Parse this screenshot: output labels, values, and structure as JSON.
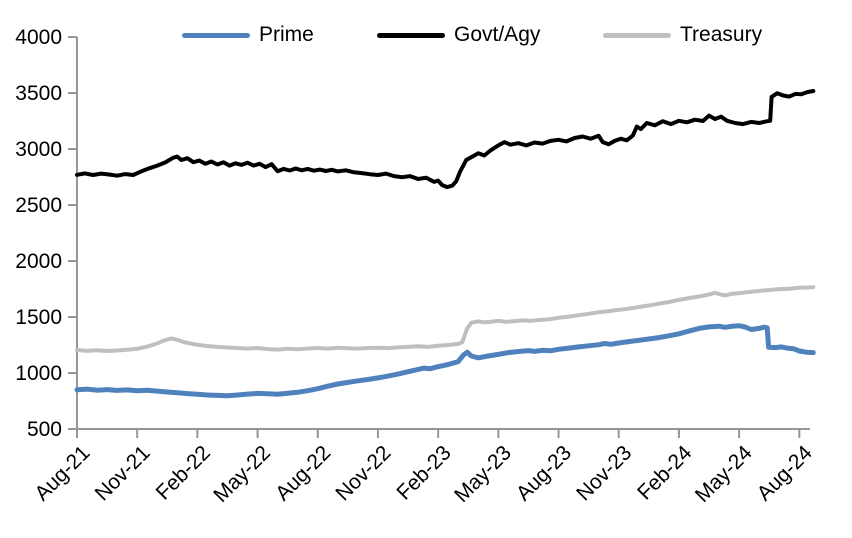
{
  "chart_data": {
    "type": "line",
    "title": "",
    "xlabel": "",
    "ylabel": "",
    "grid": false,
    "legend_position": "top",
    "axis_color": "#969696",
    "text_color": "#000000",
    "x_axis": {
      "unit": "months-since-Aug-21",
      "tick_interval_months": 3,
      "tick_labels": [
        "Aug-21",
        "Nov-21",
        "Feb-22",
        "May-22",
        "Aug-22",
        "Nov-22",
        "Feb-23",
        "May-23",
        "Aug-23",
        "Nov-23",
        "Feb-24",
        "May-24",
        "Aug-24"
      ]
    },
    "y_axis": {
      "min": 500,
      "max": 4000,
      "step": 500,
      "tick_labels": [
        "4000",
        "3500",
        "3000",
        "2500",
        "2000",
        "1500",
        "1000",
        "500"
      ]
    },
    "legend": [
      {
        "name": "Prime",
        "color": "#4f81bd"
      },
      {
        "name": "Govt/Agy",
        "color": "#000000"
      },
      {
        "name": "Treasury",
        "color": "#bfbfbf"
      }
    ],
    "series": [
      {
        "name": "Treasury",
        "color": "#bfbfbf",
        "width": 4,
        "points": [
          [
            0,
            1205
          ],
          [
            0.5,
            1197
          ],
          [
            1,
            1203
          ],
          [
            1.5,
            1196
          ],
          [
            2,
            1201
          ],
          [
            2.5,
            1208
          ],
          [
            3,
            1216
          ],
          [
            3.5,
            1236
          ],
          [
            4,
            1264
          ],
          [
            4.3,
            1288
          ],
          [
            4.7,
            1308
          ],
          [
            5,
            1296
          ],
          [
            5.4,
            1272
          ],
          [
            6,
            1252
          ],
          [
            6.5,
            1241
          ],
          [
            7,
            1233
          ],
          [
            7.5,
            1228
          ],
          [
            8,
            1223
          ],
          [
            8.5,
            1218
          ],
          [
            9,
            1223
          ],
          [
            9.5,
            1213
          ],
          [
            10,
            1209
          ],
          [
            10.5,
            1216
          ],
          [
            11,
            1212
          ],
          [
            11.5,
            1219
          ],
          [
            12,
            1223
          ],
          [
            12.5,
            1218
          ],
          [
            13,
            1226
          ],
          [
            13.5,
            1221
          ],
          [
            14,
            1218
          ],
          [
            14.5,
            1223
          ],
          [
            15,
            1226
          ],
          [
            15.5,
            1222
          ],
          [
            16,
            1229
          ],
          [
            16.5,
            1233
          ],
          [
            17,
            1239
          ],
          [
            17.5,
            1233
          ],
          [
            18,
            1243
          ],
          [
            18.5,
            1250
          ],
          [
            19,
            1260
          ],
          [
            19.2,
            1274
          ],
          [
            19.45,
            1398
          ],
          [
            19.65,
            1448
          ],
          [
            20,
            1462
          ],
          [
            20.3,
            1452
          ],
          [
            20.7,
            1459
          ],
          [
            21,
            1466
          ],
          [
            21.4,
            1456
          ],
          [
            21.8,
            1463
          ],
          [
            22.2,
            1470
          ],
          [
            22.6,
            1465
          ],
          [
            23,
            1473
          ],
          [
            23.5,
            1479
          ],
          [
            24,
            1493
          ],
          [
            24.5,
            1503
          ],
          [
            25,
            1516
          ],
          [
            25.5,
            1529
          ],
          [
            26,
            1543
          ],
          [
            26.5,
            1553
          ],
          [
            27,
            1563
          ],
          [
            27.5,
            1574
          ],
          [
            28,
            1589
          ],
          [
            28.5,
            1603
          ],
          [
            29,
            1619
          ],
          [
            29.5,
            1634
          ],
          [
            30,
            1653
          ],
          [
            30.5,
            1669
          ],
          [
            31,
            1683
          ],
          [
            31.5,
            1701
          ],
          [
            31.8,
            1716
          ],
          [
            32.05,
            1702
          ],
          [
            32.3,
            1693
          ],
          [
            32.6,
            1706
          ],
          [
            33,
            1713
          ],
          [
            33.5,
            1723
          ],
          [
            34,
            1733
          ],
          [
            34.5,
            1741
          ],
          [
            35,
            1749
          ],
          [
            35.5,
            1753
          ],
          [
            36,
            1761
          ],
          [
            36.7,
            1766
          ]
        ]
      },
      {
        "name": "Prime",
        "color": "#4f81bd",
        "width": 5,
        "points": [
          [
            0,
            850
          ],
          [
            0.5,
            856
          ],
          [
            1,
            846
          ],
          [
            1.5,
            852
          ],
          [
            2,
            845
          ],
          [
            2.5,
            849
          ],
          [
            3,
            842
          ],
          [
            3.5,
            846
          ],
          [
            4,
            838
          ],
          [
            4.5,
            830
          ],
          [
            5,
            824
          ],
          [
            5.5,
            816
          ],
          [
            6,
            810
          ],
          [
            6.5,
            804
          ],
          [
            7,
            800
          ],
          [
            7.5,
            797
          ],
          [
            8,
            804
          ],
          [
            8.5,
            812
          ],
          [
            9,
            818
          ],
          [
            9.5,
            814
          ],
          [
            10,
            811
          ],
          [
            10.5,
            820
          ],
          [
            11,
            828
          ],
          [
            11.5,
            842
          ],
          [
            12,
            860
          ],
          [
            12.5,
            882
          ],
          [
            13,
            902
          ],
          [
            13.5,
            916
          ],
          [
            14,
            930
          ],
          [
            14.5,
            942
          ],
          [
            15,
            956
          ],
          [
            15.5,
            972
          ],
          [
            16,
            990
          ],
          [
            16.5,
            1012
          ],
          [
            17,
            1032
          ],
          [
            17.3,
            1044
          ],
          [
            17.6,
            1038
          ],
          [
            18,
            1056
          ],
          [
            18.5,
            1076
          ],
          [
            19,
            1102
          ],
          [
            19.25,
            1158
          ],
          [
            19.45,
            1186
          ],
          [
            19.65,
            1152
          ],
          [
            20,
            1136
          ],
          [
            20.5,
            1152
          ],
          [
            21,
            1166
          ],
          [
            21.5,
            1182
          ],
          [
            22,
            1192
          ],
          [
            22.5,
            1200
          ],
          [
            22.8,
            1193
          ],
          [
            23.2,
            1203
          ],
          [
            23.6,
            1198
          ],
          [
            24,
            1212
          ],
          [
            24.5,
            1222
          ],
          [
            25,
            1233
          ],
          [
            25.5,
            1243
          ],
          [
            26,
            1253
          ],
          [
            26.3,
            1263
          ],
          [
            26.6,
            1256
          ],
          [
            27,
            1268
          ],
          [
            27.5,
            1280
          ],
          [
            28,
            1292
          ],
          [
            28.5,
            1304
          ],
          [
            29,
            1316
          ],
          [
            29.5,
            1332
          ],
          [
            30,
            1350
          ],
          [
            30.5,
            1374
          ],
          [
            31,
            1398
          ],
          [
            31.5,
            1412
          ],
          [
            32,
            1418
          ],
          [
            32.3,
            1408
          ],
          [
            32.7,
            1419
          ],
          [
            33,
            1422
          ],
          [
            33.3,
            1411
          ],
          [
            33.6,
            1388
          ],
          [
            34,
            1398
          ],
          [
            34.25,
            1409
          ],
          [
            34.4,
            1404
          ],
          [
            34.47,
            1230
          ],
          [
            34.8,
            1227
          ],
          [
            35.1,
            1233
          ],
          [
            35.4,
            1222
          ],
          [
            35.7,
            1217
          ],
          [
            36,
            1196
          ],
          [
            36.35,
            1186
          ],
          [
            36.7,
            1182
          ]
        ]
      },
      {
        "name": "Govt/Agy",
        "color": "#000000",
        "width": 4,
        "points": [
          [
            0,
            2770
          ],
          [
            0.4,
            2782
          ],
          [
            0.8,
            2768
          ],
          [
            1.2,
            2780
          ],
          [
            1.6,
            2772
          ],
          [
            2,
            2762
          ],
          [
            2.4,
            2776
          ],
          [
            2.8,
            2768
          ],
          [
            3.2,
            2800
          ],
          [
            3.6,
            2828
          ],
          [
            4,
            2852
          ],
          [
            4.4,
            2880
          ],
          [
            4.8,
            2922
          ],
          [
            5,
            2932
          ],
          [
            5.2,
            2902
          ],
          [
            5.5,
            2918
          ],
          [
            5.8,
            2882
          ],
          [
            6.1,
            2896
          ],
          [
            6.4,
            2868
          ],
          [
            6.7,
            2888
          ],
          [
            7,
            2862
          ],
          [
            7.3,
            2882
          ],
          [
            7.6,
            2852
          ],
          [
            7.9,
            2872
          ],
          [
            8.2,
            2858
          ],
          [
            8.5,
            2878
          ],
          [
            8.8,
            2852
          ],
          [
            9.1,
            2868
          ],
          [
            9.4,
            2838
          ],
          [
            9.7,
            2864
          ],
          [
            10,
            2802
          ],
          [
            10.3,
            2822
          ],
          [
            10.6,
            2808
          ],
          [
            10.9,
            2826
          ],
          [
            11.2,
            2810
          ],
          [
            11.5,
            2822
          ],
          [
            11.8,
            2806
          ],
          [
            12.1,
            2816
          ],
          [
            12.4,
            2804
          ],
          [
            12.7,
            2814
          ],
          [
            13,
            2800
          ],
          [
            13.4,
            2810
          ],
          [
            13.8,
            2792
          ],
          [
            14.2,
            2785
          ],
          [
            14.6,
            2775
          ],
          [
            15,
            2768
          ],
          [
            15.4,
            2780
          ],
          [
            15.8,
            2758
          ],
          [
            16.2,
            2748
          ],
          [
            16.6,
            2758
          ],
          [
            17,
            2732
          ],
          [
            17.4,
            2744
          ],
          [
            17.8,
            2706
          ],
          [
            18,
            2718
          ],
          [
            18.2,
            2678
          ],
          [
            18.45,
            2660
          ],
          [
            18.7,
            2672
          ],
          [
            18.9,
            2712
          ],
          [
            19.1,
            2800
          ],
          [
            19.4,
            2902
          ],
          [
            19.7,
            2932
          ],
          [
            20,
            2962
          ],
          [
            20.3,
            2942
          ],
          [
            20.6,
            2986
          ],
          [
            21,
            3032
          ],
          [
            21.3,
            3062
          ],
          [
            21.6,
            3038
          ],
          [
            22,
            3052
          ],
          [
            22.4,
            3032
          ],
          [
            22.8,
            3058
          ],
          [
            23.2,
            3048
          ],
          [
            23.6,
            3072
          ],
          [
            24,
            3082
          ],
          [
            24.4,
            3068
          ],
          [
            24.8,
            3098
          ],
          [
            25.2,
            3112
          ],
          [
            25.6,
            3092
          ],
          [
            26,
            3118
          ],
          [
            26.2,
            3062
          ],
          [
            26.5,
            3042
          ],
          [
            26.8,
            3072
          ],
          [
            27.1,
            3092
          ],
          [
            27.4,
            3078
          ],
          [
            27.7,
            3120
          ],
          [
            27.9,
            3200
          ],
          [
            28.1,
            3178
          ],
          [
            28.4,
            3232
          ],
          [
            28.8,
            3212
          ],
          [
            29.2,
            3248
          ],
          [
            29.6,
            3222
          ],
          [
            30,
            3252
          ],
          [
            30.4,
            3238
          ],
          [
            30.8,
            3262
          ],
          [
            31.2,
            3250
          ],
          [
            31.5,
            3298
          ],
          [
            31.8,
            3268
          ],
          [
            32.1,
            3288
          ],
          [
            32.4,
            3252
          ],
          [
            32.8,
            3232
          ],
          [
            33.2,
            3222
          ],
          [
            33.6,
            3242
          ],
          [
            34,
            3232
          ],
          [
            34.4,
            3248
          ],
          [
            34.55,
            3252
          ],
          [
            34.62,
            3465
          ],
          [
            34.9,
            3498
          ],
          [
            35.2,
            3478
          ],
          [
            35.5,
            3468
          ],
          [
            35.8,
            3492
          ],
          [
            36.1,
            3488
          ],
          [
            36.4,
            3508
          ],
          [
            36.7,
            3518
          ]
        ]
      }
    ]
  }
}
